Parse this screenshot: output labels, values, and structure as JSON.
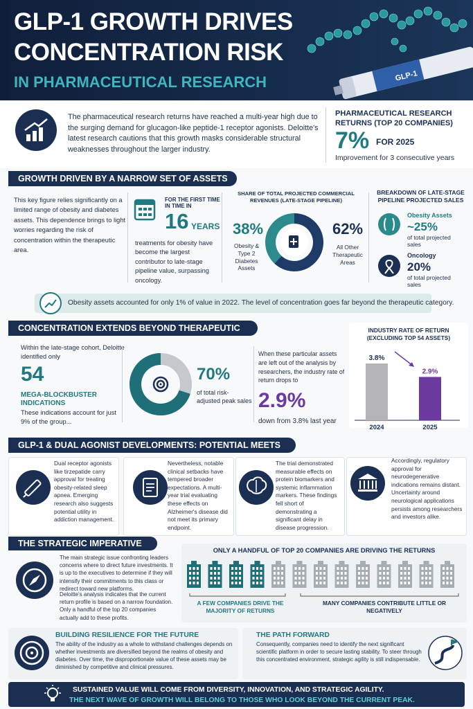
{
  "header": {
    "title_line1": "GLP-1 GROWTH DRIVES",
    "title_line2": "CONCENTRATION RISK",
    "subtitle": "IN PHARMACEUTICAL RESEARCH",
    "pen_label": "GLP-1"
  },
  "intro": {
    "text": "The pharmaceutical research returns have reached a multi-year high due to the surging demand for glucagon-like peptide-1 receptor agonists. Deloitte's latest research cautions that this growth masks considerable structural weaknesses throughout the larger industry.",
    "returns_title": "PHARMACEUTICAL RESEARCH RETURNS (TOP 20 COMPANIES)",
    "returns_value": "7%",
    "returns_year": "FOR 2025",
    "returns_note": "Improvement for 3 consecutive years"
  },
  "growth": {
    "heading": "GROWTH DRIVEN BY A NARROW SET OF ASSETS",
    "text": "This key figure relies significantly on a limited range of obesity and diabetes assets. This dependence brings to light worries regarding the risk of concentration within the therapeutic area.",
    "first_time": "FOR THE FIRST TIME IN TIME IN",
    "years_value": "16",
    "years_unit": "YEARS",
    "first_time_text": "treatments for obesity have become the largest contributor to late-stage pipeline value, surpassing oncology.",
    "share_chart": {
      "type": "donut",
      "title": "SHARE OF TOTAL PROJECTED COMMERCIAL REVENUES (LATE-STAGE PIPELINE)",
      "categories": [
        "Obesity & Type 2 Diabetes Assets",
        "All Other Therapeutic Areas"
      ],
      "values": [
        38,
        62
      ],
      "value_labels": [
        "38%",
        "62%"
      ],
      "colors": [
        "#2a8a8c",
        "#1e3a66"
      ]
    },
    "breakdown_title": "BREAKDOWN OF LATE-STAGE PIPELINE PROJECTED SALES",
    "breakdown": [
      {
        "label": "Obesity Assets",
        "value": "~25%",
        "note": "of total projected sales"
      },
      {
        "label": "Oncology",
        "value": "20%",
        "note": "of total projected sales"
      }
    ],
    "banner": "Obesity assets accounted for only 1% of value in 2022. The level of concentration goes far beyond the therapeutic category."
  },
  "concentration": {
    "heading": "CONCENTRATION EXTENDS BEYOND THERAPEUTIC AREA",
    "cohort_text": "Within the late-stage cohort, Deloitte identified only",
    "count": "54",
    "count_label": "MEGA-BLOCKBUSTER INDICATIONS",
    "count_note": "These indications account for just 9% of the group...",
    "peak_chart": {
      "type": "donut",
      "values": [
        70
      ],
      "value_labels": [
        "70%"
      ],
      "caption": "of total risk-adjusted peak sales",
      "color": "#1f6f78"
    },
    "exclusion_text": "When these particular assets are left out of the analysis by researchers, the industry rate of return drops to",
    "rate_value": "2.9%",
    "rate_note": "down from 3.8% last year",
    "rate_chart": {
      "type": "bar",
      "title": "INDUSTRY RATE OF RETURN (EXCLUDING TOP 54 ASSETS)",
      "categories": [
        "2024",
        "2025"
      ],
      "values": [
        3.8,
        2.9
      ],
      "value_labels": [
        "3.8%",
        "2.9%"
      ],
      "colors": [
        "#b5b5b8",
        "#6a3aa0"
      ]
    }
  },
  "developments": {
    "heading": "GLP-1 & DUAL AGONIST DEVELOPMENTS: POTENTIAL MEETS REALITY",
    "cards": [
      "Dual receptor agonists like tirzepatide carry approval for treating obesity-related sleep apnea. Emerging research also suggests potential utility in addiction management.",
      "Nevertheless, notable clinical setbacks have tempered broader expectations. A multi-year trial evaluating these effects on Alzheimer's disease did not meet its primary endpoint.",
      "The trial demonstrated measurable effects on protein biomarkers and systemic inflammation markers. These findings fell short of demonstrating a significant delay in disease progression.",
      "Accordingly, regulatory approval for neurodegenerative indications remains distant. Uncertainty around neurological applications persists among researchers and investors alike."
    ]
  },
  "strategic": {
    "heading": "THE STRATEGIC IMPERATIVE",
    "paragraphs": [
      "The main strategic issue confronting leaders concerns where to direct future investments. It is up to the executives to determine if they will intensify their commitments to this class or redirect toward new platforms.",
      "Deloitte's analysis indicates that the current return profile is based on a narrow foundation. Only a handful of the top 20 companies actually add to these profits."
    ],
    "panel_title": "ONLY A HANDFUL OF TOP 20 COMPANIES ARE DRIVING THE RETURNS",
    "few_label": "A FEW COMPANIES DRIVE THE MAJORITY OF RETURNS",
    "many_label": "MANY COMPANIES CONTRIBUTE LITTLE OR NEGATIVELY"
  },
  "resilience": {
    "title": "BUILDING RESILIENCE FOR THE FUTURE",
    "text": "The ability of the industry as a whole to withstand challenges depends on whether investments are diversified beyond the realms of obesity and diabetes. Over time, the disproportionate value of these assets may be diminished by competitive and clinical pressures."
  },
  "path_forward": {
    "title": "THE PATH FORWARD",
    "text": "Consequently, companies need to identify the next significant scientific platform in order to secure lasting stability. To steer through this concentrated environment, strategic agility is still indispensable."
  },
  "footer": {
    "line1": "SUSTAINED VALUE WILL COME FROM DIVERSITY, INNOVATION, AND STRATEGIC AGILITY.",
    "line2": "THE NEXT WAVE OF GROWTH WILL BELONG TO THOSE WHO LOOK BEYOND THE CURRENT PEAK."
  }
}
